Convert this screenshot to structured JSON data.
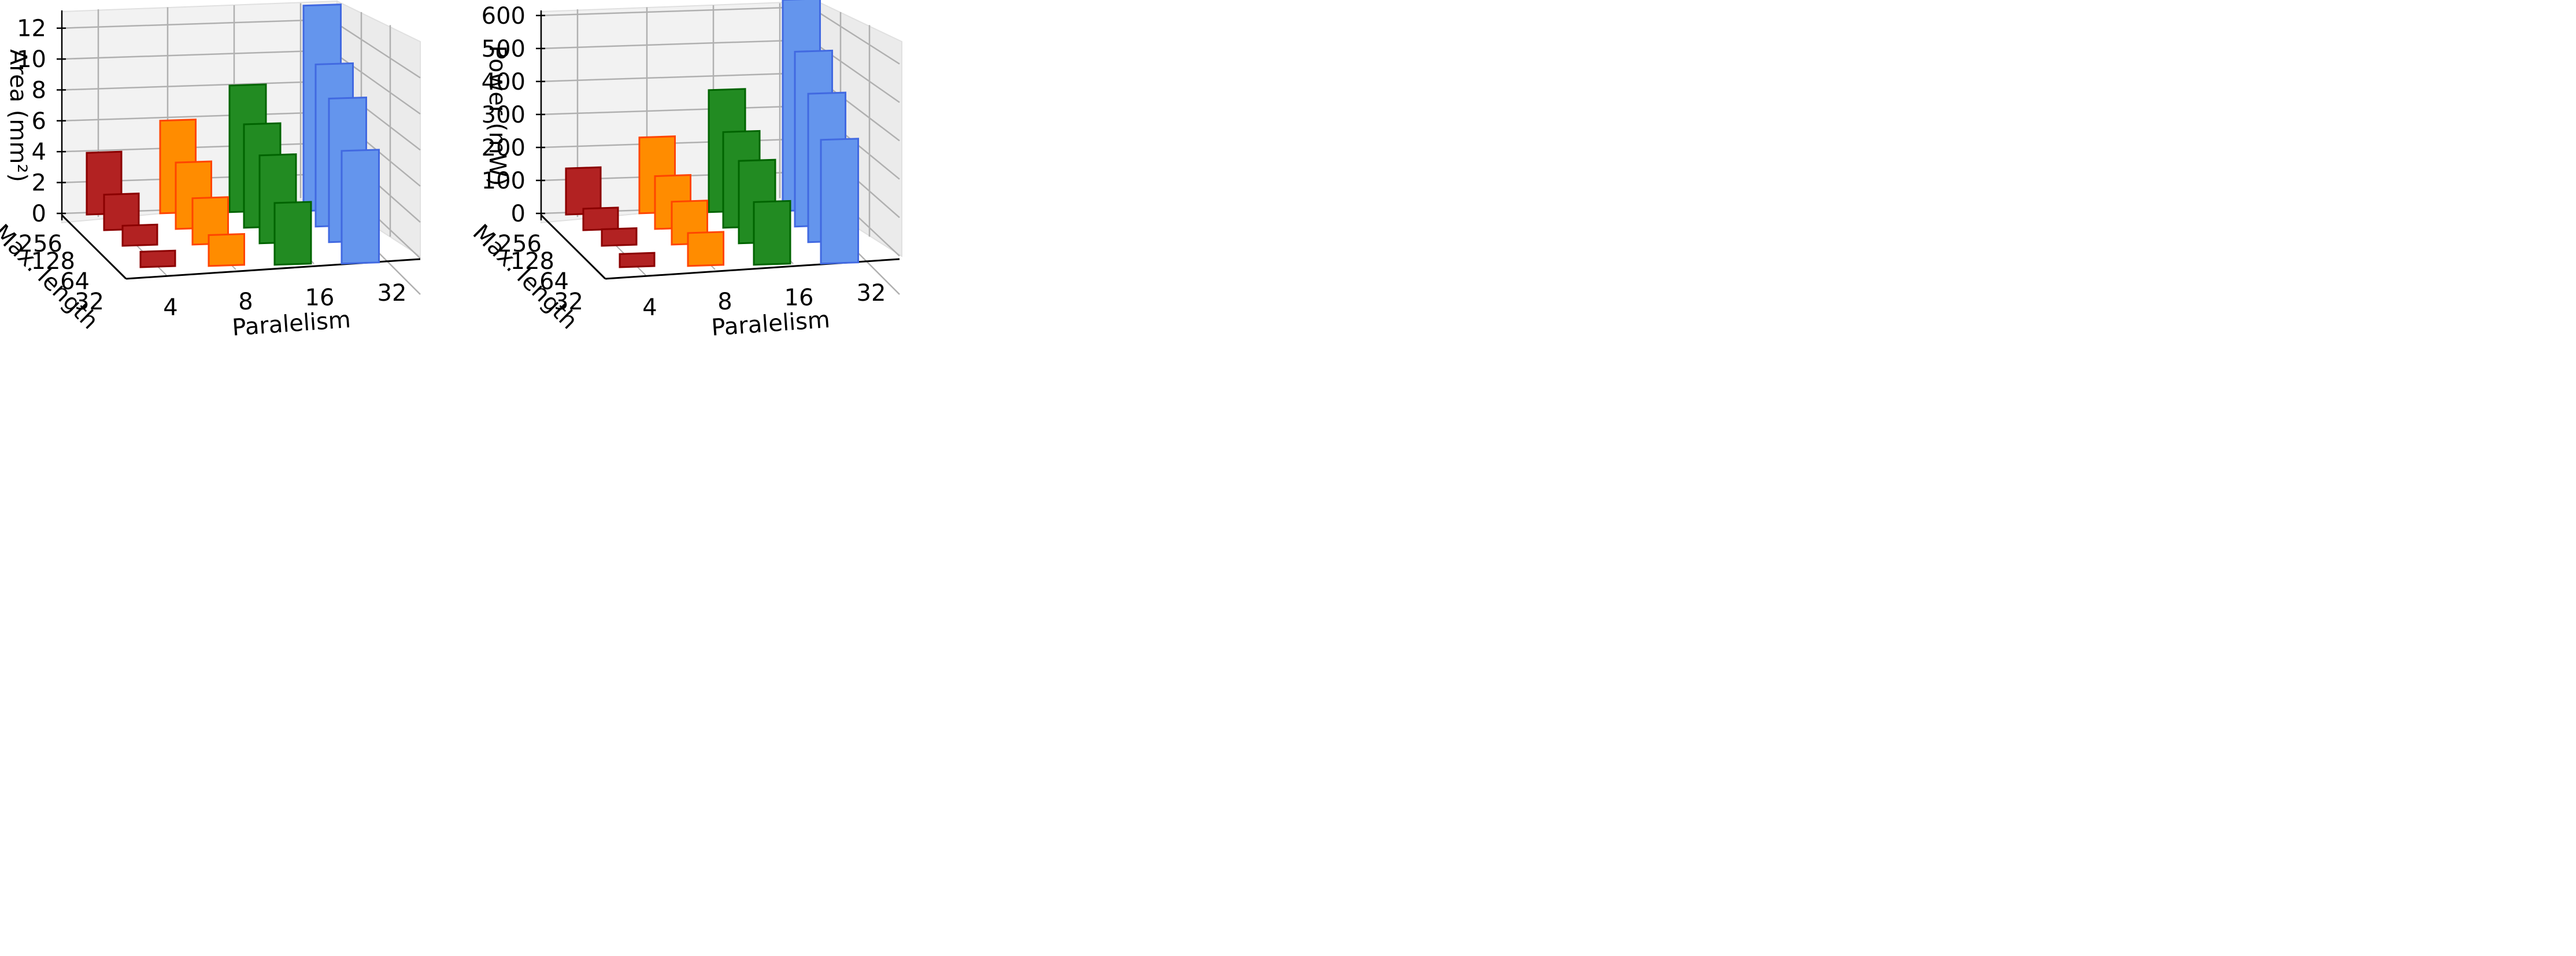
{
  "colors": {
    "pane_wall": "#f2f2f2",
    "pane_floor": "#ebebeb",
    "grid": "#b0b0b0",
    "axis": "#000000",
    "p4_fill": "#b22222",
    "p4_edge": "#8b0000",
    "p8_fill": "#ff8c00",
    "p8_edge": "#ff4500",
    "p16_fill": "#228b22",
    "p16_edge": "#006400",
    "p32_fill": "#6495ed",
    "p32_edge": "#4169e1"
  },
  "chart_data": [
    {
      "type": "bar3d",
      "xlabel": "Paralelism",
      "ylabel": "Max. length",
      "zlabel": "Area (mm²)",
      "x_ticks": [
        "4",
        "8",
        "16",
        "32"
      ],
      "y_ticks": [
        "32",
        "64",
        "128",
        "256"
      ],
      "z_ticks": [
        "0",
        "2",
        "4",
        "6",
        "8",
        "10",
        "12"
      ],
      "zlim": [
        0,
        13.3
      ],
      "grid": true,
      "series": [
        {
          "parallelism": "4",
          "color_key": "p4",
          "values": [
            1.0,
            1.3,
            2.3,
            4.0
          ]
        },
        {
          "parallelism": "8",
          "color_key": "p8",
          "values": [
            2.0,
            3.0,
            4.3,
            6.0
          ]
        },
        {
          "parallelism": "16",
          "color_key": "p16",
          "values": [
            4.0,
            5.7,
            6.7,
            8.2
          ]
        },
        {
          "parallelism": "32",
          "color_key": "p32",
          "values": [
            7.3,
            9.3,
            10.5,
            13.3
          ]
        }
      ]
    },
    {
      "type": "bar3d",
      "xlabel": "Paralelism",
      "ylabel": "Max. length",
      "zlabel": "Power (mW)",
      "x_ticks": [
        "4",
        "8",
        "16",
        "32"
      ],
      "y_ticks": [
        "32",
        "64",
        "128",
        "256"
      ],
      "z_ticks": [
        "0",
        "100",
        "200",
        "300",
        "400",
        "500",
        "600"
      ],
      "zlim": [
        0,
        640
      ],
      "grid": true,
      "series": [
        {
          "parallelism": "4",
          "color_key": "p4",
          "values": [
            40,
            50,
            65,
            140
          ]
        },
        {
          "parallelism": "8",
          "color_key": "p8",
          "values": [
            100,
            130,
            160,
            230
          ]
        },
        {
          "parallelism": "16",
          "color_key": "p16",
          "values": [
            190,
            250,
            290,
            370
          ]
        },
        {
          "parallelism": "32",
          "color_key": "p32",
          "values": [
            375,
            450,
            530,
            640
          ]
        }
      ]
    }
  ]
}
